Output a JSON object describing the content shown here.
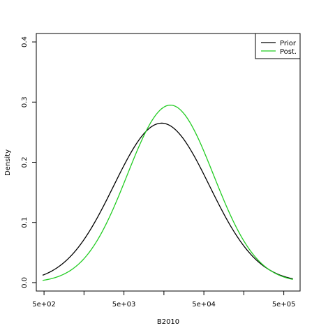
{
  "chart_data": {
    "type": "line",
    "title": "",
    "xlabel": "B2010",
    "ylabel": "Density",
    "x_scale": "log10",
    "xlim": [
      400,
      800000
    ],
    "ylim": [
      -0.014,
      0.414
    ],
    "x_ticks": [
      {
        "value": 500,
        "label": "5e+02"
      },
      {
        "value": 1581,
        "label": ""
      },
      {
        "value": 5000,
        "label": "5e+03"
      },
      {
        "value": 15811,
        "label": ""
      },
      {
        "value": 50000,
        "label": "5e+04"
      },
      {
        "value": 158114,
        "label": ""
      },
      {
        "value": 500000,
        "label": "5e+05"
      },
      {
        "value": 1581139,
        "label": ""
      }
    ],
    "y_ticks": [
      {
        "value": 0.0,
        "label": "0.0"
      },
      {
        "value": 0.1,
        "label": "0.1"
      },
      {
        "value": 0.2,
        "label": "0.2"
      },
      {
        "value": 0.3,
        "label": "0.3"
      },
      {
        "value": 0.4,
        "label": "0.4"
      }
    ],
    "legend": {
      "position": "top-right"
    },
    "series": [
      {
        "name": "Prior",
        "color": "#000000",
        "log10_center": 4.17,
        "log10_sd": 0.6,
        "peak": 0.265,
        "x_range": [
          480,
          650000
        ]
      },
      {
        "name": "Post.",
        "color": "#22cc22",
        "log10_center": 4.28,
        "log10_sd": 0.54,
        "peak": 0.295,
        "x_range": [
          480,
          650000
        ]
      }
    ]
  }
}
